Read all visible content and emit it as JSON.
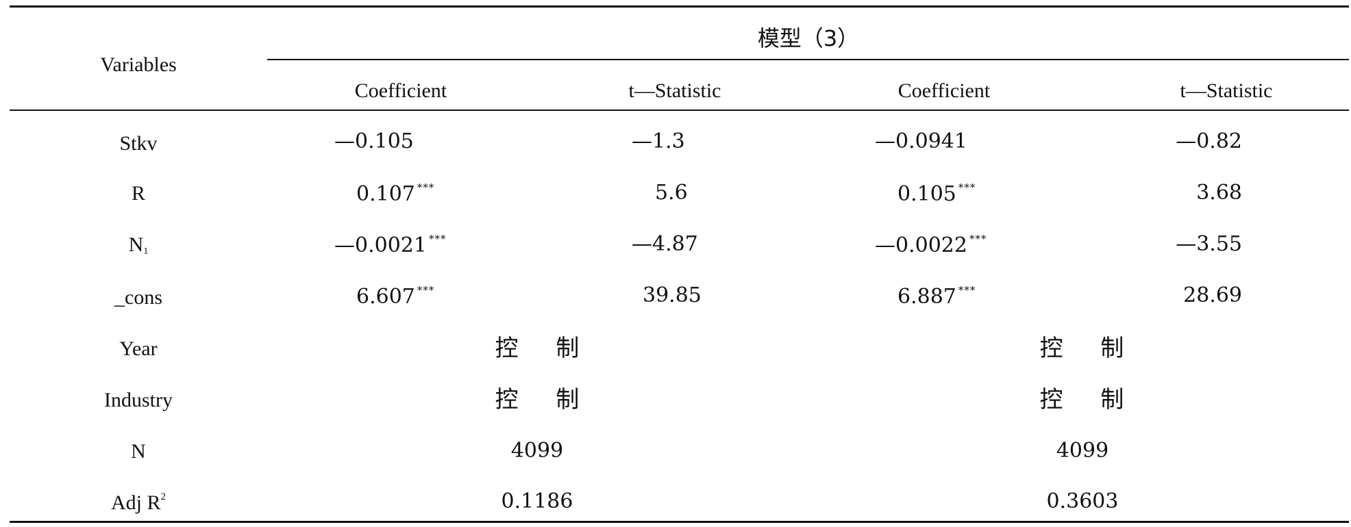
{
  "table": {
    "header": {
      "variables": "Variables",
      "model": "模型（3）",
      "cols": [
        "Coefficient",
        "t—Statistic",
        "Coefficient",
        "t—Statistic"
      ]
    },
    "rows": [
      {
        "var": "Stkv",
        "c1": "—0.105",
        "c1_stars": "",
        "t1": "—1.3",
        "c2": "—0.0941",
        "c2_stars": "",
        "t2": "—0.82"
      },
      {
        "var": "R",
        "c1": "0.107",
        "c1_stars": "***",
        "t1": "5.6",
        "c2": "0.105",
        "c2_stars": "***",
        "t2": "3.68"
      },
      {
        "var_base": "N",
        "var_sub": "1",
        "c1": "—0.0021",
        "c1_stars": "***",
        "t1": "—4.87",
        "c2": "—0.0022",
        "c2_stars": "***",
        "t2": "—3.55"
      },
      {
        "var": "_cons",
        "c1": "6.607",
        "c1_stars": "***",
        "t1": "39.85",
        "c2": "6.887",
        "c2_stars": "***",
        "t2": "28.69"
      }
    ],
    "control_rows": [
      {
        "var": "Year",
        "left": "控 制",
        "right": "控 制"
      },
      {
        "var": "Industry",
        "left": "控 制",
        "right": "控 制"
      }
    ],
    "n_row": {
      "var": "N",
      "left": "4099",
      "right": "4099"
    },
    "adj_row": {
      "var_base": "Adj R",
      "var_sup": "2",
      "left": "0.1186",
      "right": "0.3603"
    }
  }
}
